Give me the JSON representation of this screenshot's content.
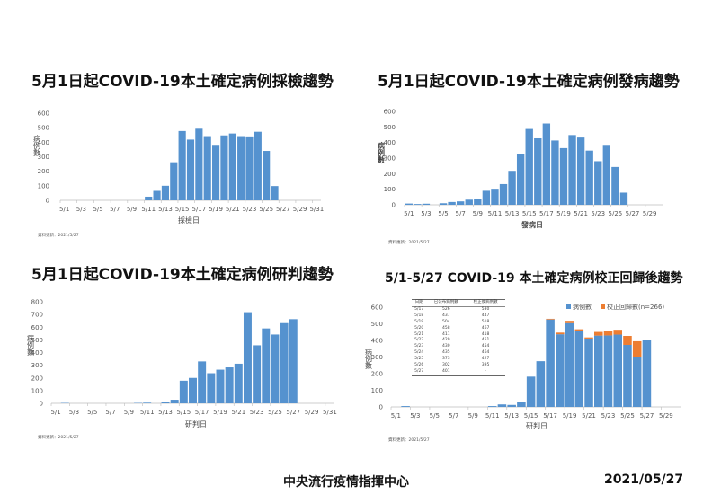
{
  "footnote": "資料更新：2021/5/27",
  "footer": {
    "org": "中央流行疫情指揮中心",
    "date": "2021/05/27"
  },
  "colors": {
    "bar": "#5592cf",
    "correction": "#ed7d31"
  },
  "chart_data": [
    {
      "type": "bar",
      "title": "5月1日起COVID-19本土確定病例採檢趨勢",
      "xlabel": "採檢日",
      "ylabel": "病例數",
      "ylim": [
        0,
        600
      ],
      "yticks": [
        0,
        100,
        200,
        300,
        400,
        500,
        600
      ],
      "categories": [
        "5/1",
        "5/2",
        "5/3",
        "5/4",
        "5/5",
        "5/6",
        "5/7",
        "5/8",
        "5/9",
        "5/10",
        "5/11",
        "5/12",
        "5/13",
        "5/14",
        "5/15",
        "5/16",
        "5/17",
        "5/18",
        "5/19",
        "5/20",
        "5/21",
        "5/22",
        "5/23",
        "5/24",
        "5/25",
        "5/26",
        "5/27",
        "5/28",
        "5/29",
        "5/30",
        "5/31"
      ],
      "values": [
        0,
        0,
        0,
        0,
        0,
        0,
        0,
        0,
        0,
        0,
        25,
        65,
        100,
        262,
        477,
        418,
        493,
        442,
        382,
        447,
        460,
        442,
        440,
        472,
        340,
        98,
        0,
        0,
        0,
        0,
        0
      ]
    },
    {
      "type": "bar",
      "title": "5月1日起COVID-19本土確定病例發病趨勢",
      "xlabel": "發病日",
      "ylabel": "病例數",
      "ylim": [
        0,
        600
      ],
      "yticks": [
        0,
        100,
        200,
        300,
        400,
        500,
        600
      ],
      "categories": [
        "5/1",
        "5/2",
        "5/3",
        "5/4",
        "5/5",
        "5/6",
        "5/7",
        "5/8",
        "5/9",
        "5/10",
        "5/11",
        "5/12",
        "5/13",
        "5/14",
        "5/15",
        "5/16",
        "5/17",
        "5/18",
        "5/19",
        "5/20",
        "5/21",
        "5/22",
        "5/23",
        "5/24",
        "5/25",
        "5/26",
        "5/27",
        "5/28",
        "5/29",
        "5/30"
      ],
      "values": [
        8,
        5,
        7,
        0,
        10,
        18,
        22,
        33,
        40,
        90,
        103,
        133,
        218,
        328,
        487,
        427,
        522,
        413,
        364,
        448,
        432,
        348,
        280,
        385,
        243,
        78,
        0,
        0,
        0,
        0
      ]
    },
    {
      "type": "bar",
      "title": "5月1日起COVID-19本土確定病例研判趨勢",
      "xlabel": "研判日",
      "ylabel": "病例數",
      "ylim": [
        0,
        800
      ],
      "yticks": [
        0,
        100,
        200,
        300,
        400,
        500,
        600,
        700,
        800
      ],
      "categories": [
        "5/1",
        "5/2",
        "5/3",
        "5/4",
        "5/5",
        "5/6",
        "5/7",
        "5/8",
        "5/9",
        "5/10",
        "5/11",
        "5/12",
        "5/13",
        "5/14",
        "5/15",
        "5/16",
        "5/17",
        "5/18",
        "5/19",
        "5/20",
        "5/21",
        "5/22",
        "5/23",
        "5/24",
        "5/25",
        "5/26",
        "5/27",
        "5/28",
        "5/29",
        "5/30",
        "5/31"
      ],
      "values": [
        0,
        3,
        0,
        0,
        0,
        0,
        0,
        0,
        0,
        3,
        5,
        0,
        12,
        28,
        178,
        200,
        330,
        237,
        265,
        283,
        312,
        718,
        457,
        590,
        542,
        632,
        663,
        0,
        0,
        0,
        0
      ]
    },
    {
      "type": "bar",
      "stacked": true,
      "title": "5/1-5/27 COVID-19 本土確定病例校正回歸後趨勢",
      "xlabel": "研判日",
      "ylabel": "病例數",
      "ylim": [
        0,
        600
      ],
      "yticks": [
        0,
        100,
        200,
        300,
        400,
        500,
        600
      ],
      "legend_position": "top-right",
      "categories": [
        "5/1",
        "5/2",
        "5/3",
        "5/4",
        "5/5",
        "5/6",
        "5/7",
        "5/8",
        "5/9",
        "5/10",
        "5/11",
        "5/12",
        "5/13",
        "5/14",
        "5/15",
        "5/16",
        "5/17",
        "5/18",
        "5/19",
        "5/20",
        "5/21",
        "5/22",
        "5/23",
        "5/24",
        "5/25",
        "5/26",
        "5/27",
        "5/28",
        "5/29",
        "5/30"
      ],
      "series": [
        {
          "name": "病例數",
          "values": [
            0,
            5,
            0,
            0,
            0,
            0,
            0,
            0,
            0,
            0,
            5,
            15,
            12,
            30,
            182,
            275,
            526,
            437,
            504,
            458,
            411,
            429,
            430,
            435,
            373,
            302,
            401,
            0,
            0,
            0
          ]
        },
        {
          "name": "校正回歸數(n=266)",
          "values": [
            0,
            0,
            0,
            0,
            0,
            0,
            0,
            0,
            0,
            0,
            0,
            0,
            0,
            0,
            0,
            0,
            4,
            10,
            14,
            9,
            7,
            22,
            24,
            29,
            54,
            93,
            0,
            0,
            0,
            0
          ]
        }
      ],
      "table": {
        "headers": [
          "日期",
          "已公布病例數",
          "校正後病例數"
        ],
        "rows": [
          [
            "5/17",
            "526",
            "530"
          ],
          [
            "5/18",
            "437",
            "447"
          ],
          [
            "5/19",
            "504",
            "518"
          ],
          [
            "5/20",
            "458",
            "467"
          ],
          [
            "5/21",
            "411",
            "418"
          ],
          [
            "5/22",
            "429",
            "451"
          ],
          [
            "5/23",
            "430",
            "454"
          ],
          [
            "5/24",
            "435",
            "464"
          ],
          [
            "5/25",
            "373",
            "427"
          ],
          [
            "5/26",
            "302",
            "395"
          ],
          [
            "5/27",
            "401",
            "-"
          ]
        ]
      }
    }
  ]
}
